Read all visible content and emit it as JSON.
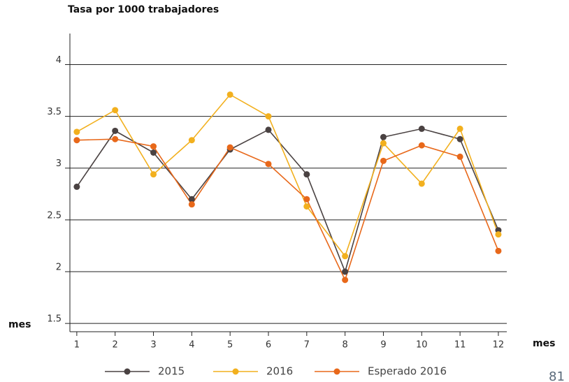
{
  "chart_data": {
    "type": "line",
    "title": "Tasa por 1000 trabajadores",
    "xlabel": "mes",
    "ylabel": "mes",
    "page_number": "81",
    "x": [
      1,
      2,
      3,
      4,
      5,
      6,
      7,
      8,
      9,
      10,
      11,
      12
    ],
    "xlim": [
      0.82,
      12.22
    ],
    "xticks": [
      1,
      2,
      3,
      4,
      5,
      6,
      7,
      8,
      9,
      10,
      11,
      12
    ],
    "ylim": [
      1.42,
      4.3
    ],
    "yticks": [
      1.5,
      2,
      2.5,
      3,
      3.5,
      4
    ],
    "grid": true,
    "legend": "bottom",
    "series": [
      {
        "name": "2015",
        "color": "#4a4242",
        "values": [
          2.82,
          3.36,
          3.15,
          2.7,
          3.18,
          3.37,
          2.94,
          2.0,
          3.3,
          3.38,
          3.28,
          2.4
        ]
      },
      {
        "name": "2016",
        "color": "#f2b01e",
        "values": [
          3.35,
          3.56,
          2.94,
          3.27,
          3.71,
          3.5,
          2.63,
          2.15,
          3.24,
          2.85,
          3.38,
          2.36
        ]
      },
      {
        "name": "Esperado 2016",
        "color": "#e8681a",
        "values": [
          3.27,
          3.28,
          3.21,
          2.65,
          3.2,
          3.04,
          2.7,
          1.92,
          3.07,
          3.22,
          3.11,
          2.2
        ]
      }
    ]
  }
}
